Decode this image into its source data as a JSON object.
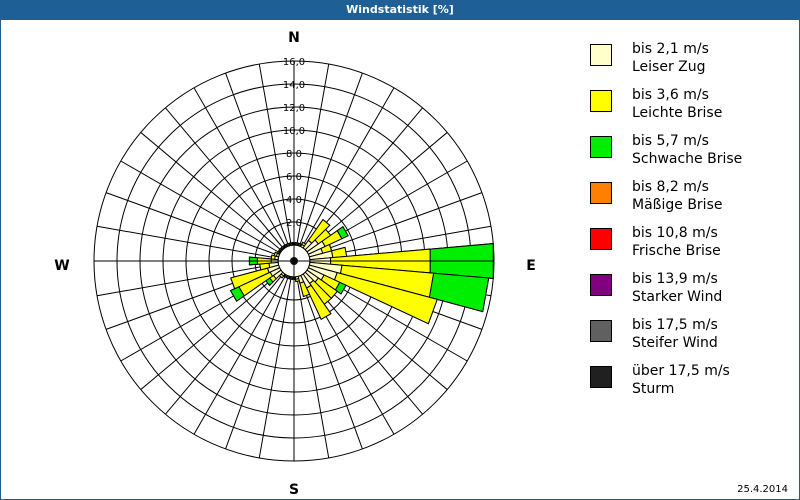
{
  "window": {
    "title": "Windstatistik [%]"
  },
  "footer": {
    "date": "25.4.2014"
  },
  "compass": {
    "n": "N",
    "e": "E",
    "s": "S",
    "w": "W"
  },
  "legend": [
    {
      "range": "bis 2,1 m/s",
      "name": "Leiser Zug",
      "color": "#ffffcc"
    },
    {
      "range": "bis 3,6 m/s",
      "name": "Leichte Brise",
      "color": "#ffff00"
    },
    {
      "range": "bis 5,7 m/s",
      "name": "Schwache Brise",
      "color": "#00ee00"
    },
    {
      "range": "bis 8,2 m/s",
      "name": "Mäßige Brise",
      "color": "#ff8000"
    },
    {
      "range": "bis 10,8 m/s",
      "name": "Frische Brise",
      "color": "#ff0000"
    },
    {
      "range": "bis 13,9 m/s",
      "name": "Starker Wind",
      "color": "#800080"
    },
    {
      "range": "bis 17,5 m/s",
      "name": "Steifer Wind",
      "color": "#606060"
    },
    {
      "range": "über 17,5 m/s",
      "name": "Sturm",
      "color": "#202020"
    }
  ],
  "chart_data": {
    "type": "wind-rose",
    "title": "Windstatistik [%]",
    "radial_ticks": [
      "2,0",
      "4,0",
      "6,0",
      "8,0",
      "10,0",
      "12,0",
      "14,0",
      "16,0"
    ],
    "radial_range": [
      0,
      16
    ],
    "sector_width_deg": 10,
    "series": [
      "bis 2,1 m/s",
      "bis 3,6 m/s",
      "bis 5,7 m/s"
    ],
    "sectors": [
      {
        "dir": 0,
        "values": [
          0.1,
          0.1,
          0
        ]
      },
      {
        "dir": 10,
        "values": [
          0.1,
          0.1,
          0
        ]
      },
      {
        "dir": 20,
        "values": [
          0.1,
          0.1,
          0
        ]
      },
      {
        "dir": 30,
        "values": [
          0.2,
          0.2,
          0
        ]
      },
      {
        "dir": 40,
        "values": [
          0.8,
          2.2,
          0
        ]
      },
      {
        "dir": 50,
        "values": [
          1.2,
          1.3,
          0
        ]
      },
      {
        "dir": 60,
        "values": [
          1.6,
          1.6,
          0.6
        ]
      },
      {
        "dir": 70,
        "values": [
          1.2,
          0.8,
          0
        ]
      },
      {
        "dir": 80,
        "values": [
          2.0,
          1.2,
          0
        ]
      },
      {
        "dir": 90,
        "values": [
          1.8,
          8.7,
          5.5
        ]
      },
      {
        "dir": 100,
        "values": [
          2.8,
          8.0,
          4.8
        ]
      },
      {
        "dir": 110,
        "values": [
          2.5,
          9.0,
          0
        ]
      },
      {
        "dir": 120,
        "values": [
          1.5,
          1.5,
          0.6
        ]
      },
      {
        "dir": 130,
        "values": [
          1.2,
          2.0,
          0
        ]
      },
      {
        "dir": 140,
        "values": [
          1.0,
          2.2,
          0
        ]
      },
      {
        "dir": 150,
        "values": [
          1.2,
          3.0,
          0
        ]
      },
      {
        "dir": 160,
        "values": [
          0.6,
          1.2,
          0
        ]
      },
      {
        "dir": 170,
        "values": [
          0.2,
          0.2,
          0
        ]
      },
      {
        "dir": 180,
        "values": [
          0.1,
          0.1,
          0
        ]
      },
      {
        "dir": 190,
        "values": [
          0.1,
          0.1,
          0
        ]
      },
      {
        "dir": 200,
        "values": [
          0.1,
          0.1,
          0
        ]
      },
      {
        "dir": 210,
        "values": [
          0.1,
          0.1,
          0
        ]
      },
      {
        "dir": 220,
        "values": [
          0.2,
          0.2,
          0
        ]
      },
      {
        "dir": 230,
        "values": [
          0.8,
          0.4,
          0.4
        ]
      },
      {
        "dir": 240,
        "values": [
          0.9,
          3.0,
          0.8
        ]
      },
      {
        "dir": 250,
        "values": [
          1.0,
          3.3,
          0
        ]
      },
      {
        "dir": 260,
        "values": [
          0.8,
          0.8,
          0
        ]
      },
      {
        "dir": 270,
        "values": [
          0.6,
          1.2,
          0.7
        ]
      },
      {
        "dir": 280,
        "values": [
          0.3,
          0.3,
          0
        ]
      },
      {
        "dir": 290,
        "values": [
          0.2,
          0.2,
          0
        ]
      },
      {
        "dir": 300,
        "values": [
          0.1,
          0.1,
          0
        ]
      },
      {
        "dir": 310,
        "values": [
          0.1,
          0.1,
          0
        ]
      },
      {
        "dir": 320,
        "values": [
          0.1,
          0.1,
          0
        ]
      },
      {
        "dir": 330,
        "values": [
          0.1,
          0.1,
          0
        ]
      },
      {
        "dir": 340,
        "values": [
          0.1,
          0.1,
          0
        ]
      },
      {
        "dir": 350,
        "values": [
          0.1,
          0.1,
          0
        ]
      }
    ]
  }
}
